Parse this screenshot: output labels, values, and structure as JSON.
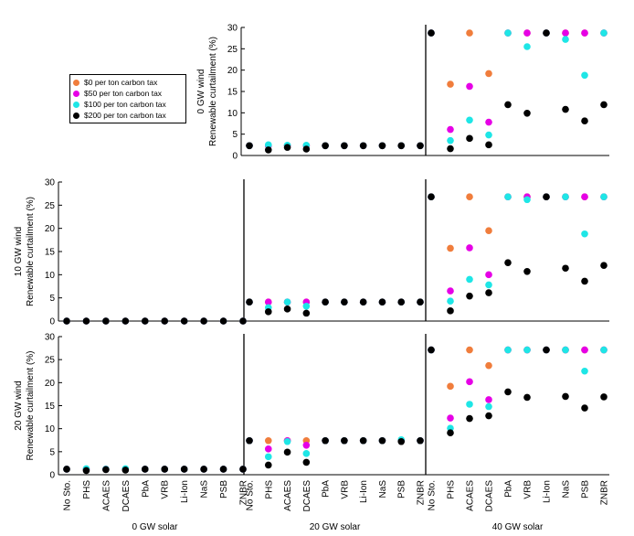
{
  "chart_data": {
    "type": "scatter",
    "categories": [
      "No Sto.",
      "PHS",
      "ACAES",
      "DCAES",
      "PbA",
      "VRB",
      "Li-Ion",
      "NaS",
      "PSB",
      "ZNBR"
    ],
    "ylim": [
      0,
      30
    ],
    "yticks": [
      0,
      5,
      10,
      15,
      20,
      25,
      30
    ],
    "ylabel": "Renewable curtailment (%)",
    "grid": false,
    "legend_position": "top-left",
    "colors": {
      "$0 per ton carbon tax": "#f07d3c",
      "$50 per ton carbon tax": "#e600e6",
      "$100 per ton carbon tax": "#1ee6e6",
      "$200 per ton carbon tax": "#000000"
    },
    "series_names": [
      "$0 per ton carbon tax",
      "$50 per ton carbon tax",
      "$100 per ton carbon tax",
      "$200 per ton carbon tax"
    ],
    "row_labels": [
      "0 GW wind",
      "10 GW wind",
      "20 GW wind"
    ],
    "col_labels": [
      "0 GW solar",
      "20 GW solar",
      "40 GW solar"
    ],
    "panels": [
      {
        "wind": "0 GW wind",
        "solar": "20 GW solar",
        "series": [
          {
            "name": "$0 per ton carbon tax",
            "values": [
              2.3,
              2.3,
              2.3,
              2.3,
              2.3,
              2.3,
              2.3,
              2.3,
              2.3,
              2.3
            ]
          },
          {
            "name": "$50 per ton carbon tax",
            "values": [
              2.3,
              2.3,
              2.3,
              2.3,
              2.3,
              2.3,
              2.3,
              2.3,
              2.3,
              2.3
            ]
          },
          {
            "name": "$100 per ton carbon tax",
            "values": [
              2.3,
              2.5,
              2.4,
              2.4,
              2.3,
              2.3,
              2.3,
              2.3,
              2.3,
              2.3
            ]
          },
          {
            "name": "$200 per ton carbon tax",
            "values": [
              2.3,
              1.3,
              1.9,
              1.5,
              2.3,
              2.3,
              2.3,
              2.3,
              2.3,
              2.3
            ]
          }
        ]
      },
      {
        "wind": "0 GW wind",
        "solar": "40 GW solar",
        "series": [
          {
            "name": "$0 per ton carbon tax",
            "values": [
              28.7,
              16.7,
              28.7,
              19.2,
              28.7,
              28.7,
              28.7,
              28.7,
              28.7,
              28.7
            ]
          },
          {
            "name": "$50 per ton carbon tax",
            "values": [
              28.7,
              6.1,
              16.2,
              7.8,
              28.7,
              28.7,
              28.7,
              28.7,
              28.7,
              28.7
            ]
          },
          {
            "name": "$100 per ton carbon tax",
            "values": [
              28.7,
              3.5,
              8.3,
              4.8,
              28.7,
              25.5,
              28.7,
              27.2,
              18.8,
              28.7
            ]
          },
          {
            "name": "$200 per ton carbon tax",
            "values": [
              28.7,
              1.6,
              4.0,
              2.5,
              11.9,
              9.9,
              28.7,
              10.8,
              8.1,
              11.9
            ]
          }
        ]
      },
      {
        "wind": "10 GW wind",
        "solar": "0 GW solar",
        "series": [
          {
            "name": "$0 per ton carbon tax",
            "values": [
              0,
              0,
              0,
              0,
              0,
              0,
              0,
              0,
              0,
              0
            ]
          },
          {
            "name": "$50 per ton carbon tax",
            "values": [
              0,
              0,
              0,
              0,
              0,
              0,
              0,
              0,
              0,
              0
            ]
          },
          {
            "name": "$100 per ton carbon tax",
            "values": [
              0,
              0,
              0,
              0,
              0,
              0,
              0,
              0,
              0,
              0
            ]
          },
          {
            "name": "$200 per ton carbon tax",
            "values": [
              0,
              0,
              0,
              0,
              0,
              0,
              0,
              0,
              0,
              0
            ]
          }
        ]
      },
      {
        "wind": "10 GW wind",
        "solar": "20 GW solar",
        "series": [
          {
            "name": "$0 per ton carbon tax",
            "values": [
              4.1,
              4.1,
              4.1,
              4.1,
              4.1,
              4.1,
              4.1,
              4.1,
              4.1,
              4.1
            ]
          },
          {
            "name": "$50 per ton carbon tax",
            "values": [
              4.1,
              4.1,
              4.1,
              4.1,
              4.1,
              4.1,
              4.1,
              4.1,
              4.1,
              4.1
            ]
          },
          {
            "name": "$100 per ton carbon tax",
            "values": [
              4.1,
              2.9,
              4.1,
              3.2,
              4.1,
              4.1,
              4.1,
              4.1,
              4.1,
              4.1
            ]
          },
          {
            "name": "$200 per ton carbon tax",
            "values": [
              4.1,
              2.0,
              2.6,
              1.7,
              4.1,
              4.1,
              4.1,
              4.1,
              4.1,
              4.1
            ]
          }
        ]
      },
      {
        "wind": "10 GW wind",
        "solar": "40 GW solar",
        "series": [
          {
            "name": "$0 per ton carbon tax",
            "values": [
              26.8,
              15.7,
              26.8,
              19.5,
              26.8,
              26.8,
              26.8,
              26.8,
              26.8,
              26.8
            ]
          },
          {
            "name": "$50 per ton carbon tax",
            "values": [
              26.8,
              6.5,
              15.8,
              10.0,
              26.8,
              26.8,
              26.8,
              26.8,
              26.8,
              26.8
            ]
          },
          {
            "name": "$100 per ton carbon tax",
            "values": [
              26.8,
              4.3,
              9.0,
              7.8,
              26.8,
              26.2,
              26.8,
              26.8,
              18.8,
              26.8
            ]
          },
          {
            "name": "$200 per ton carbon tax",
            "values": [
              26.8,
              2.2,
              5.4,
              6.1,
              12.6,
              10.7,
              26.8,
              11.4,
              8.6,
              12.0
            ]
          }
        ]
      },
      {
        "wind": "20 GW wind",
        "solar": "0 GW solar",
        "series": [
          {
            "name": "$0 per ton carbon tax",
            "values": [
              1.2,
              1.2,
              1.2,
              1.2,
              1.2,
              1.2,
              1.2,
              1.2,
              1.2,
              1.2
            ]
          },
          {
            "name": "$50 per ton carbon tax",
            "values": [
              1.2,
              1.2,
              1.2,
              1.2,
              1.2,
              1.2,
              1.2,
              1.2,
              1.2,
              1.2
            ]
          },
          {
            "name": "$100 per ton carbon tax",
            "values": [
              1.2,
              1.3,
              1.2,
              1.3,
              1.2,
              1.2,
              1.2,
              1.2,
              1.2,
              1.2
            ]
          },
          {
            "name": "$200 per ton carbon tax",
            "values": [
              1.2,
              0.9,
              1.1,
              1.0,
              1.2,
              1.2,
              1.2,
              1.2,
              1.2,
              1.2
            ]
          }
        ]
      },
      {
        "wind": "20 GW wind",
        "solar": "20 GW solar",
        "series": [
          {
            "name": "$0 per ton carbon tax",
            "values": [
              7.4,
              7.4,
              7.4,
              7.4,
              7.4,
              7.4,
              7.4,
              7.4,
              7.4,
              7.4
            ]
          },
          {
            "name": "$50 per ton carbon tax",
            "values": [
              7.4,
              5.6,
              7.4,
              6.4,
              7.4,
              7.4,
              7.4,
              7.4,
              7.4,
              7.4
            ]
          },
          {
            "name": "$100 per ton carbon tax",
            "values": [
              7.4,
              3.9,
              7.2,
              4.6,
              7.4,
              7.4,
              7.4,
              7.4,
              7.6,
              7.4
            ]
          },
          {
            "name": "$200 per ton carbon tax",
            "values": [
              7.4,
              2.1,
              4.9,
              2.7,
              7.4,
              7.4,
              7.4,
              7.4,
              7.2,
              7.4
            ]
          }
        ]
      },
      {
        "wind": "20 GW wind",
        "solar": "40 GW solar",
        "series": [
          {
            "name": "$0 per ton carbon tax",
            "values": [
              27.1,
              19.2,
              27.1,
              23.7,
              27.1,
              27.1,
              27.1,
              27.1,
              27.1,
              27.1
            ]
          },
          {
            "name": "$50 per ton carbon tax",
            "values": [
              27.1,
              12.3,
              20.2,
              16.3,
              27.1,
              27.1,
              27.1,
              27.1,
              27.1,
              27.1
            ]
          },
          {
            "name": "$100 per ton carbon tax",
            "values": [
              27.1,
              10.1,
              15.3,
              14.8,
              27.1,
              27.1,
              27.1,
              27.1,
              22.5,
              27.1
            ]
          },
          {
            "name": "$200 per ton carbon tax",
            "values": [
              27.1,
              9.1,
              12.2,
              12.8,
              18.0,
              16.8,
              27.1,
              17.0,
              14.5,
              16.9
            ]
          }
        ]
      }
    ]
  }
}
